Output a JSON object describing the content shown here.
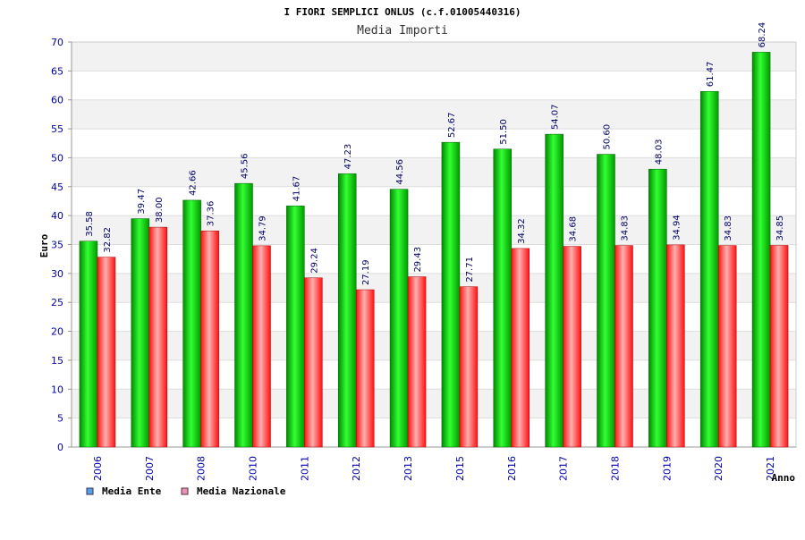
{
  "chart_data": {
    "type": "bar",
    "title": "I FIORI SEMPLICI ONLUS (c.f.01005440316)",
    "subtitle": "Media Importi",
    "xlabel": "Anno",
    "ylabel": "Euro",
    "ylim": [
      0,
      70
    ],
    "yticks": [
      0,
      5,
      10,
      15,
      20,
      25,
      30,
      35,
      40,
      45,
      50,
      55,
      60,
      65,
      70
    ],
    "grid": true,
    "legend_position": "bottom-left",
    "categories": [
      "2006",
      "2007",
      "2008",
      "2010",
      "2011",
      "2012",
      "2013",
      "2015",
      "2016",
      "2017",
      "2018",
      "2019",
      "2020",
      "2021"
    ],
    "series": [
      {
        "name": "Media Ente",
        "color": "#00c000",
        "legend_color": "#5aa0e8",
        "values": [
          35.58,
          39.47,
          42.66,
          45.56,
          41.67,
          47.23,
          44.56,
          52.67,
          51.5,
          54.07,
          50.6,
          48.03,
          61.47,
          68.24
        ],
        "labels": [
          "35.58",
          "39.47",
          "42.66",
          "45.56",
          "41.67",
          "47.23",
          "44.56",
          "52.67",
          "51.50",
          "54.07",
          "50.60",
          "48.03",
          "61.47",
          "68.24"
        ]
      },
      {
        "name": "Media Nazionale",
        "color": "#ff2020",
        "legend_color": "#e890b8",
        "values": [
          32.82,
          38.0,
          37.36,
          34.79,
          29.24,
          27.19,
          29.43,
          27.71,
          34.32,
          34.68,
          34.83,
          34.94,
          34.83,
          34.85
        ],
        "labels": [
          "32.82",
          "38.00",
          "37.36",
          "34.79",
          "29.24",
          "27.19",
          "29.43",
          "27.71",
          "34.32",
          "34.68",
          "34.83",
          "34.94",
          "34.83",
          "34.85"
        ]
      }
    ]
  }
}
